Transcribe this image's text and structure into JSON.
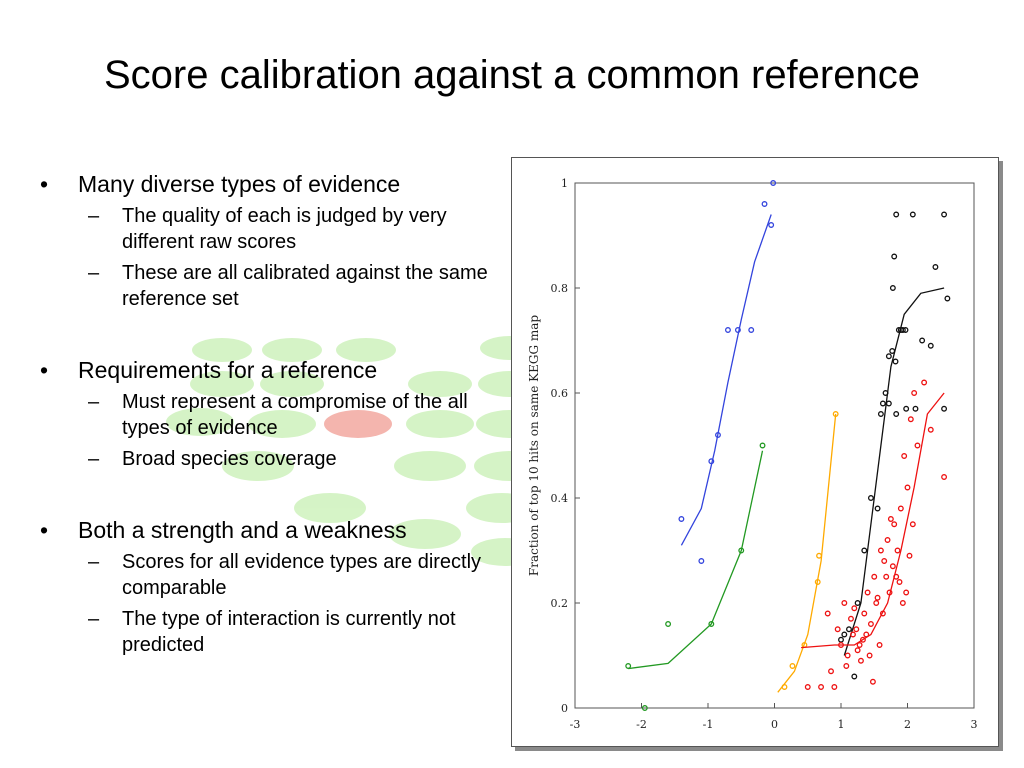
{
  "slide": {
    "title": "Score calibration against a common reference",
    "bullet_glyph": "•",
    "sub_glyph": "–",
    "bullets": [
      {
        "text": "Many diverse types of evidence",
        "sub": [
          "The quality of each is judged by very different raw scores",
          "These are all calibrated against the same reference set"
        ]
      },
      {
        "text": "Requirements for a reference",
        "sub": [
          "Must represent a compromise of the all types of evidence",
          "Broad species coverage"
        ]
      },
      {
        "text": "Both a strength and a weakness",
        "sub": [
          "Scores for all evidence types are directly comparable",
          "The type of interaction is currently not predicted"
        ]
      }
    ],
    "background_colors": {
      "green": "#c8f0b4",
      "red": "#f2a8a0"
    }
  },
  "chart_data": {
    "type": "scatter",
    "title": "",
    "xlabel": "",
    "ylabel": "Fraction of top 10 hits on same KEGG map",
    "xlim": [
      -3,
      3
    ],
    "ylim": [
      0,
      1
    ],
    "xticks": [
      "-3",
      "-2",
      "-1",
      "0",
      "1",
      "2",
      "3"
    ],
    "yticks": [
      "0",
      "0.2",
      "0.4",
      "0.6",
      "0.8",
      "1"
    ],
    "grid": false,
    "series": [
      {
        "color": "#3344dd",
        "points": [
          [
            -1.4,
            0.36
          ],
          [
            -1.1,
            0.28
          ],
          [
            -0.95,
            0.47
          ],
          [
            -0.85,
            0.52
          ],
          [
            -0.7,
            0.72
          ],
          [
            -0.55,
            0.72
          ],
          [
            -0.35,
            0.72
          ],
          [
            -0.15,
            0.96
          ],
          [
            -0.05,
            0.92
          ],
          [
            -0.02,
            1.0
          ]
        ],
        "curve": [
          [
            -1.4,
            0.31
          ],
          [
            -1.1,
            0.38
          ],
          [
            -0.9,
            0.49
          ],
          [
            -0.7,
            0.62
          ],
          [
            -0.5,
            0.74
          ],
          [
            -0.3,
            0.85
          ],
          [
            -0.05,
            0.94
          ]
        ]
      },
      {
        "color": "#229922",
        "points": [
          [
            -2.2,
            0.08
          ],
          [
            -1.95,
            0.0
          ],
          [
            -1.6,
            0.16
          ],
          [
            -0.95,
            0.16
          ],
          [
            -0.5,
            0.3
          ],
          [
            -0.18,
            0.5
          ]
        ],
        "curve": [
          [
            -2.2,
            0.075
          ],
          [
            -1.6,
            0.085
          ],
          [
            -0.95,
            0.16
          ],
          [
            -0.5,
            0.3
          ],
          [
            -0.18,
            0.49
          ]
        ]
      },
      {
        "color": "#ffaa00",
        "points": [
          [
            0.15,
            0.04
          ],
          [
            0.27,
            0.08
          ],
          [
            0.45,
            0.12
          ],
          [
            0.65,
            0.24
          ],
          [
            0.67,
            0.29
          ],
          [
            0.92,
            0.56
          ]
        ],
        "curve": [
          [
            0.05,
            0.03
          ],
          [
            0.3,
            0.07
          ],
          [
            0.5,
            0.14
          ],
          [
            0.7,
            0.28
          ],
          [
            0.92,
            0.56
          ]
        ]
      },
      {
        "color": "#111111",
        "points": [
          [
            1.0,
            0.13
          ],
          [
            1.05,
            0.14
          ],
          [
            1.12,
            0.15
          ],
          [
            1.2,
            0.06
          ],
          [
            1.25,
            0.2
          ],
          [
            1.35,
            0.3
          ],
          [
            1.45,
            0.4
          ],
          [
            1.55,
            0.38
          ],
          [
            1.6,
            0.56
          ],
          [
            1.63,
            0.58
          ],
          [
            1.67,
            0.6
          ],
          [
            1.72,
            0.67
          ],
          [
            1.77,
            0.68
          ],
          [
            1.82,
            0.66
          ],
          [
            1.87,
            0.72
          ],
          [
            1.9,
            0.72
          ],
          [
            1.93,
            0.72
          ],
          [
            1.97,
            0.72
          ],
          [
            1.83,
            0.94
          ],
          [
            1.8,
            0.86
          ],
          [
            1.78,
            0.8
          ],
          [
            1.72,
            0.58
          ],
          [
            1.83,
            0.56
          ],
          [
            1.98,
            0.57
          ],
          [
            2.08,
            0.94
          ],
          [
            2.22,
            0.7
          ],
          [
            2.12,
            0.57
          ],
          [
            2.35,
            0.69
          ],
          [
            2.42,
            0.84
          ],
          [
            2.55,
            0.94
          ],
          [
            2.55,
            0.57
          ],
          [
            2.6,
            0.78
          ]
        ],
        "curve": [
          [
            1.05,
            0.1
          ],
          [
            1.3,
            0.2
          ],
          [
            1.45,
            0.35
          ],
          [
            1.6,
            0.5
          ],
          [
            1.75,
            0.65
          ],
          [
            1.95,
            0.75
          ],
          [
            2.2,
            0.79
          ],
          [
            2.55,
            0.8
          ]
        ]
      },
      {
        "color": "#ee1111",
        "points": [
          [
            0.5,
            0.04
          ],
          [
            0.7,
            0.04
          ],
          [
            0.8,
            0.18
          ],
          [
            0.85,
            0.07
          ],
          [
            0.9,
            0.04
          ],
          [
            0.95,
            0.15
          ],
          [
            1.05,
            0.2
          ],
          [
            1.1,
            0.1
          ],
          [
            1.15,
            0.17
          ],
          [
            1.2,
            0.19
          ],
          [
            1.25,
            0.11
          ],
          [
            1.3,
            0.09
          ],
          [
            1.35,
            0.18
          ],
          [
            1.4,
            0.22
          ],
          [
            1.45,
            0.16
          ],
          [
            1.5,
            0.25
          ],
          [
            1.55,
            0.21
          ],
          [
            1.6,
            0.3
          ],
          [
            1.65,
            0.28
          ],
          [
            1.7,
            0.32
          ],
          [
            1.75,
            0.36
          ],
          [
            1.8,
            0.35
          ],
          [
            1.85,
            0.3
          ],
          [
            1.9,
            0.38
          ],
          [
            1.95,
            0.48
          ],
          [
            2.0,
            0.42
          ],
          [
            2.05,
            0.55
          ],
          [
            2.1,
            0.6
          ],
          [
            2.15,
            0.5
          ],
          [
            2.25,
            0.62
          ],
          [
            2.35,
            0.53
          ],
          [
            2.55,
            0.44
          ],
          [
            1.0,
            0.12
          ],
          [
            1.18,
            0.14
          ],
          [
            1.28,
            0.12
          ],
          [
            1.38,
            0.14
          ],
          [
            1.43,
            0.1
          ],
          [
            1.53,
            0.2
          ],
          [
            1.58,
            0.12
          ],
          [
            1.68,
            0.25
          ],
          [
            1.73,
            0.22
          ],
          [
            1.78,
            0.27
          ],
          [
            1.88,
            0.24
          ],
          [
            1.93,
            0.2
          ],
          [
            2.03,
            0.29
          ],
          [
            1.48,
            0.05
          ],
          [
            1.08,
            0.08
          ],
          [
            1.23,
            0.15
          ],
          [
            1.33,
            0.13
          ],
          [
            1.63,
            0.18
          ],
          [
            1.83,
            0.25
          ],
          [
            1.98,
            0.22
          ],
          [
            2.08,
            0.35
          ]
        ],
        "curve": [
          [
            0.4,
            0.115
          ],
          [
            0.9,
            0.12
          ],
          [
            1.2,
            0.12
          ],
          [
            1.45,
            0.14
          ],
          [
            1.7,
            0.2
          ],
          [
            1.9,
            0.3
          ],
          [
            2.1,
            0.42
          ],
          [
            2.3,
            0.56
          ],
          [
            2.55,
            0.6
          ]
        ]
      }
    ]
  }
}
